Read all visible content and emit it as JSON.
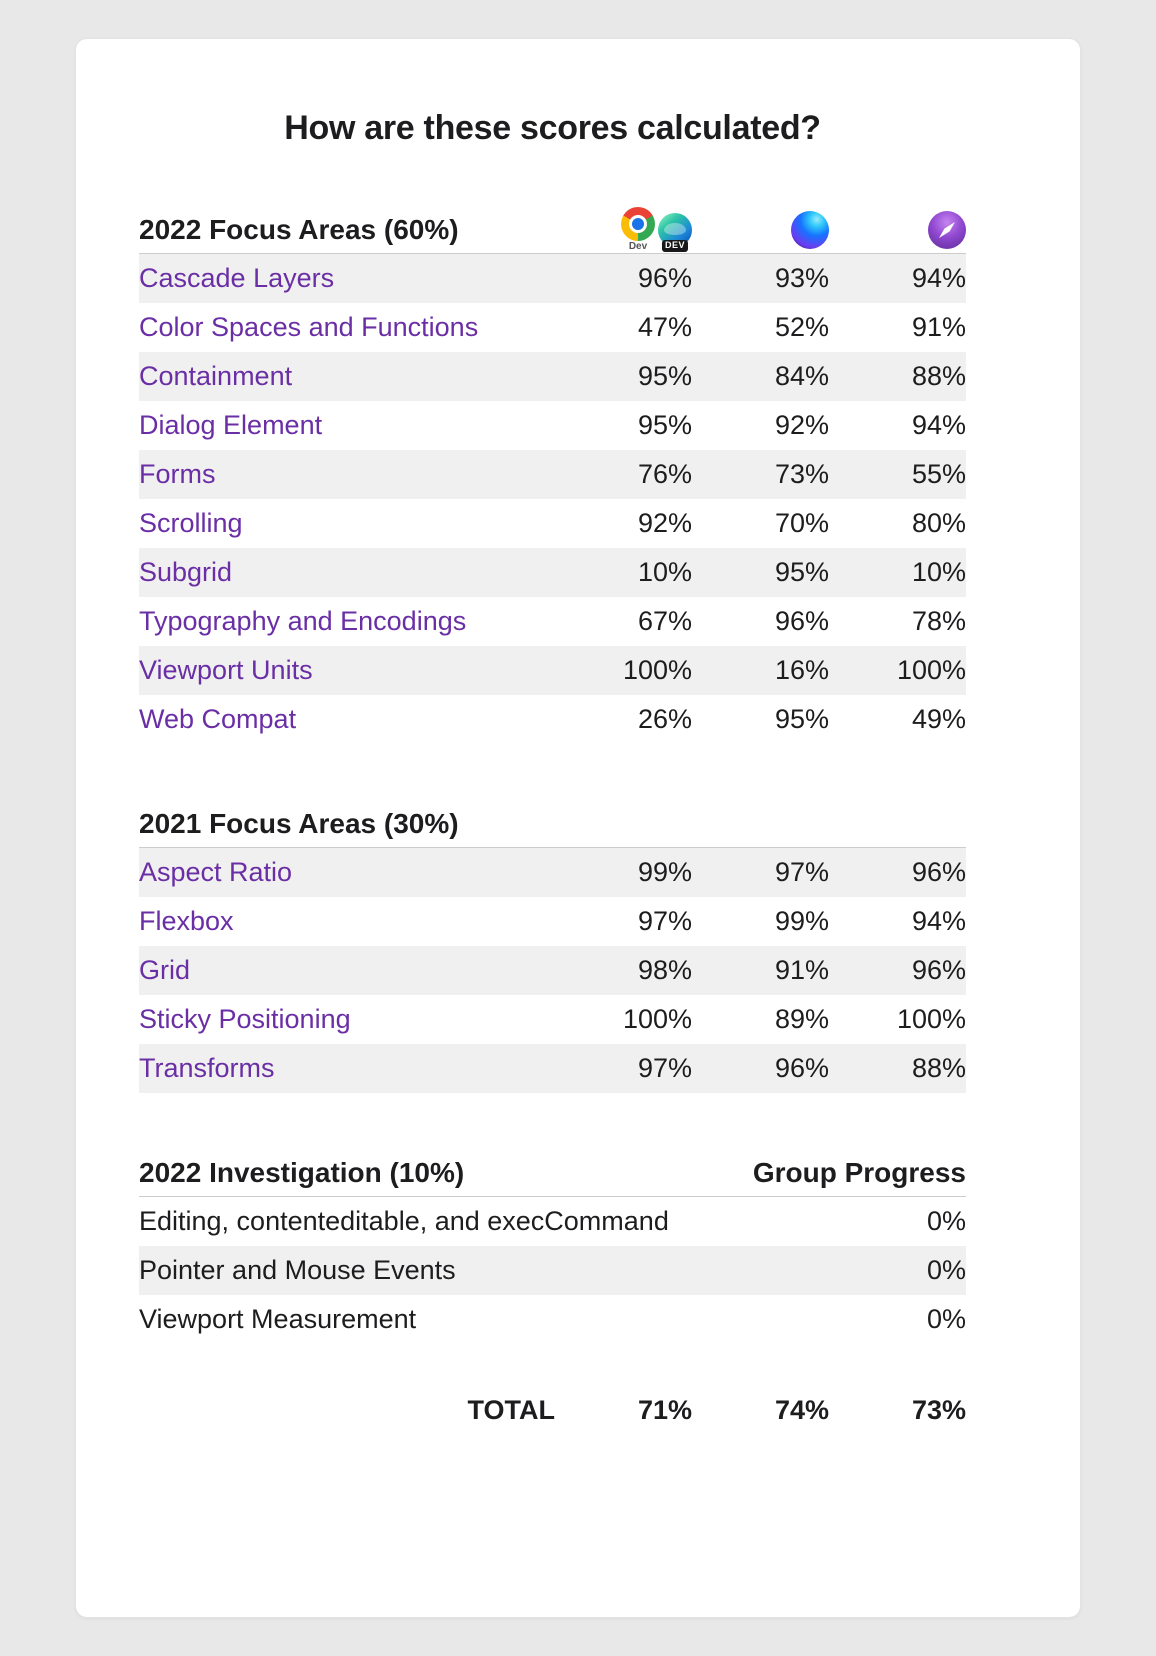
{
  "title": "How are these scores calculated?",
  "colors": {
    "page_background": "#e8e8e8",
    "card_background": "#ffffff",
    "row_stripe": "#f0f0f0",
    "link": "#6a2ea5",
    "text": "#1d1d1f",
    "divider": "#cccccc"
  },
  "browser_columns": [
    {
      "icons": [
        {
          "name": "chrome-dev-icon",
          "caption": "Dev"
        },
        {
          "name": "edge-dev-icon",
          "caption": "DEV"
        }
      ]
    },
    {
      "icons": [
        {
          "name": "firefox-nightly-icon",
          "caption": ""
        }
      ]
    },
    {
      "icons": [
        {
          "name": "safari-technology-preview-icon",
          "caption": ""
        }
      ]
    }
  ],
  "sections": [
    {
      "heading": "2022 Focus Areas (60%)",
      "rows_are_links": true,
      "show_browser_icons": true,
      "rows": [
        {
          "label": "Cascade Layers",
          "values": [
            "96%",
            "93%",
            "94%"
          ]
        },
        {
          "label": "Color Spaces and Functions",
          "values": [
            "47%",
            "52%",
            "91%"
          ]
        },
        {
          "label": "Containment",
          "values": [
            "95%",
            "84%",
            "88%"
          ]
        },
        {
          "label": "Dialog Element",
          "values": [
            "95%",
            "92%",
            "94%"
          ]
        },
        {
          "label": "Forms",
          "values": [
            "76%",
            "73%",
            "55%"
          ]
        },
        {
          "label": "Scrolling",
          "values": [
            "92%",
            "70%",
            "80%"
          ]
        },
        {
          "label": "Subgrid",
          "values": [
            "10%",
            "95%",
            "10%"
          ]
        },
        {
          "label": "Typography and Encodings",
          "values": [
            "67%",
            "96%",
            "78%"
          ]
        },
        {
          "label": "Viewport Units",
          "values": [
            "100%",
            "16%",
            "100%"
          ]
        },
        {
          "label": "Web Compat",
          "values": [
            "26%",
            "95%",
            "49%"
          ]
        }
      ]
    },
    {
      "heading": "2021 Focus Areas (30%)",
      "rows_are_links": true,
      "show_browser_icons": false,
      "rows": [
        {
          "label": "Aspect Ratio",
          "values": [
            "99%",
            "97%",
            "96%"
          ]
        },
        {
          "label": "Flexbox",
          "values": [
            "97%",
            "99%",
            "94%"
          ]
        },
        {
          "label": "Grid",
          "values": [
            "98%",
            "91%",
            "96%"
          ]
        },
        {
          "label": "Sticky Positioning",
          "values": [
            "100%",
            "89%",
            "100%"
          ]
        },
        {
          "label": "Transforms",
          "values": [
            "97%",
            "96%",
            "88%"
          ]
        }
      ]
    },
    {
      "heading": "2022 Investigation (10%)",
      "heading_right": "Group Progress",
      "rows_are_links": false,
      "show_browser_icons": false,
      "rows": [
        {
          "label": "Editing, contenteditable, and execCommand",
          "values": [
            "0%"
          ]
        },
        {
          "label": "Pointer and Mouse Events",
          "values": [
            "0%"
          ]
        },
        {
          "label": "Viewport Measurement",
          "values": [
            "0%"
          ]
        }
      ]
    }
  ],
  "total": {
    "label": "TOTAL",
    "values": [
      "71%",
      "74%",
      "73%"
    ]
  }
}
